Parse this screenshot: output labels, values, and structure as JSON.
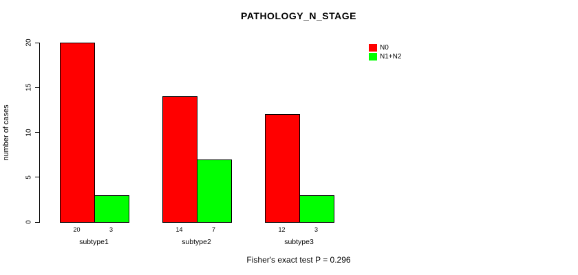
{
  "chart_data": {
    "type": "bar",
    "title": "PATHOLOGY_N_STAGE",
    "ylabel": "number of cases",
    "xlabel": "",
    "categories": [
      "subtype1",
      "subtype2",
      "subtype3"
    ],
    "series": [
      {
        "name": "N0",
        "color": "#ff0000",
        "values": [
          20,
          14,
          12
        ]
      },
      {
        "name": "N1+N2",
        "color": "#00ff00",
        "values": [
          3,
          7,
          3
        ]
      }
    ],
    "bar_value_labels": [
      [
        "20",
        "3"
      ],
      [
        "14",
        "7"
      ],
      [
        "12",
        "3"
      ]
    ],
    "ylim": [
      0,
      20
    ],
    "yticks": [
      "0",
      "5",
      "10",
      "15",
      "20"
    ],
    "grid": false,
    "legend_position": "top-right",
    "annotation": "Fisher's exact test P = 0.296",
    "colors": {
      "axis": "#000000",
      "background": "#ffffff",
      "text": "#000000"
    }
  }
}
